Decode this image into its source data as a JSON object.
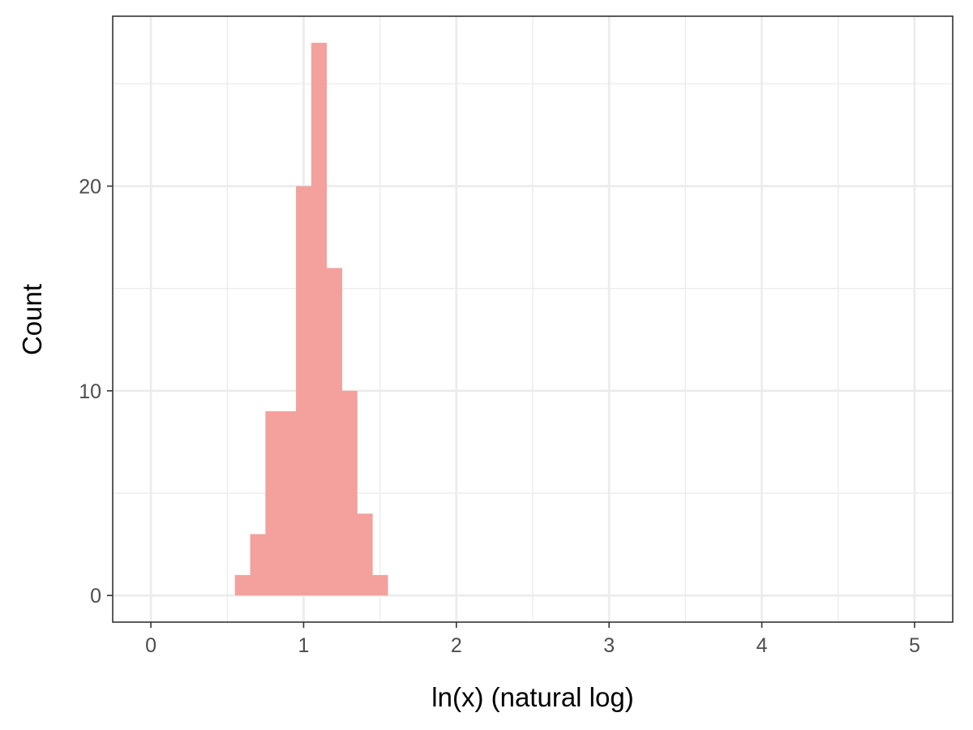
{
  "chart_data": {
    "type": "bar",
    "subtype": "histogram",
    "xlabel": "ln(x) (natural log)",
    "ylabel": "Count",
    "xlim": [
      -0.25,
      5.25
    ],
    "ylim": [
      -1.3,
      28.3
    ],
    "xticks": [
      0,
      1,
      2,
      3,
      4,
      5
    ],
    "xtick_labels": [
      "0",
      "1",
      "2",
      "3",
      "4",
      "5"
    ],
    "yticks": [
      0,
      10,
      20
    ],
    "ytick_labels": [
      "0",
      "10",
      "20"
    ],
    "grid": true,
    "bin_width": 0.1,
    "bins": [
      {
        "x0": 0.55,
        "x1": 0.65,
        "count": 1
      },
      {
        "x0": 0.65,
        "x1": 0.75,
        "count": 3
      },
      {
        "x0": 0.75,
        "x1": 0.85,
        "count": 9
      },
      {
        "x0": 0.85,
        "x1": 0.95,
        "count": 9
      },
      {
        "x0": 0.95,
        "x1": 1.05,
        "count": 20
      },
      {
        "x0": 1.05,
        "x1": 1.15,
        "count": 27
      },
      {
        "x0": 1.15,
        "x1": 1.25,
        "count": 16
      },
      {
        "x0": 1.25,
        "x1": 1.35,
        "count": 10
      },
      {
        "x0": 1.35,
        "x1": 1.45,
        "count": 4
      },
      {
        "x0": 1.45,
        "x1": 1.55,
        "count": 1
      }
    ],
    "colors": {
      "bar": "#f4a09c",
      "grid": "#ebebeb",
      "panel_border": "#333333",
      "tick_text": "#4d4d4d",
      "axis_title": "#000000"
    }
  }
}
